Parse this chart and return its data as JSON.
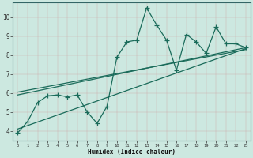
{
  "xlabel": "Humidex (Indice chaleur)",
  "xlim": [
    -0.5,
    23.5
  ],
  "ylim": [
    3.5,
    10.8
  ],
  "xticks": [
    0,
    1,
    2,
    3,
    4,
    5,
    6,
    7,
    8,
    9,
    10,
    11,
    12,
    13,
    14,
    15,
    16,
    17,
    18,
    19,
    20,
    21,
    22,
    23
  ],
  "yticks": [
    4,
    5,
    6,
    7,
    8,
    9,
    10
  ],
  "background_color": "#cce8e0",
  "grid_color": "#aacccc",
  "line_color": "#1a6b5a",
  "data_x": [
    0,
    1,
    2,
    3,
    4,
    5,
    6,
    7,
    8,
    9,
    10,
    11,
    12,
    13,
    14,
    15,
    16,
    17,
    18,
    19,
    20,
    21,
    22,
    23
  ],
  "data_y": [
    3.9,
    4.5,
    5.5,
    5.85,
    5.9,
    5.8,
    5.9,
    5.0,
    4.4,
    5.3,
    7.9,
    8.7,
    8.8,
    10.5,
    9.6,
    8.8,
    7.2,
    9.1,
    8.7,
    8.1,
    9.5,
    8.6,
    8.6,
    8.4
  ],
  "reg_lines": [
    {
      "x0": 0,
      "y0": 4.1,
      "x1": 23,
      "y1": 8.35
    },
    {
      "x0": 0,
      "y0": 5.9,
      "x1": 23,
      "y1": 8.4
    },
    {
      "x0": 0,
      "y0": 6.05,
      "x1": 23,
      "y1": 8.3
    }
  ]
}
